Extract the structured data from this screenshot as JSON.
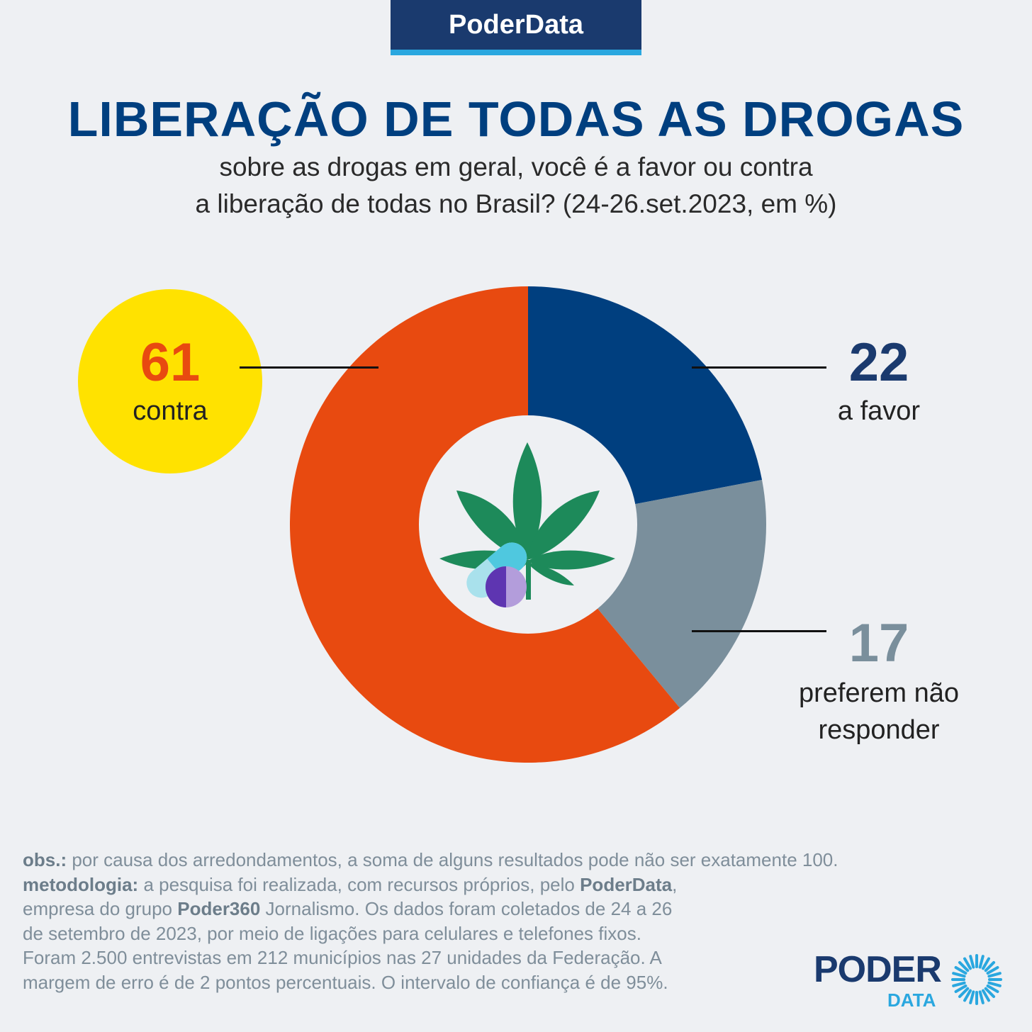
{
  "header": {
    "brand": "PoderData"
  },
  "title": "LIBERAÇÃO DE TODAS AS DROGAS",
  "subtitle_lines": [
    "sobre as drogas em geral, você é a favor ou contra",
    "a liberação de todas no Brasil? (24-26.set.2023, em %)"
  ],
  "chart_data": {
    "type": "pie",
    "style": "donut",
    "unit": "%",
    "slices": [
      {
        "label": "a favor",
        "value": 22,
        "color": "#003f7f"
      },
      {
        "label": "preferem não responder",
        "value": 17,
        "color": "#7a8f9c"
      },
      {
        "label": "contra",
        "value": 61,
        "color": "#e84a10"
      }
    ],
    "center_icon": "cannabis-leaf-and-pills-icon"
  },
  "labels": {
    "contra": {
      "value": "61",
      "text": "contra",
      "value_color": "#e84a10"
    },
    "a_favor": {
      "value": "22",
      "text": "a favor",
      "value_color": "#1a3a6e"
    },
    "nao_responder": {
      "value": "17",
      "line1": "preferem não",
      "line2": "responder",
      "value_color": "#7a8f9c"
    }
  },
  "footer": {
    "obs_label": "obs.:",
    "obs_text": " por causa dos arredondamentos, a soma de alguns resultados pode não ser exatamente 100.",
    "metodologia_label": "metodologia:",
    "m1": " a pesquisa foi realizada, com recursos próprios, pelo ",
    "m1_bold": "PoderData",
    "m1_end": ",",
    "m2": "empresa do grupo ",
    "m2_bold": "Poder360",
    "m2_end": " Jornalismo. Os dados foram coletados de 24 a 26",
    "m3": "de setembro de 2023, por meio de ligações para celulares e telefones fixos.",
    "m4": "Foram 2.500 entrevistas em 212 municípios nas 27 unidades da Federação. A",
    "m5": "margem de erro é de 2 pontos percentuais. O intervalo de confiança é de 95%."
  },
  "logo": {
    "poder": "PODER",
    "data": "DATA",
    "icon": "sunburst-icon"
  },
  "colors": {
    "background": "#eef0f3",
    "title": "#003f7f",
    "accent": "#2aa7df",
    "highlight": "#ffe200"
  }
}
